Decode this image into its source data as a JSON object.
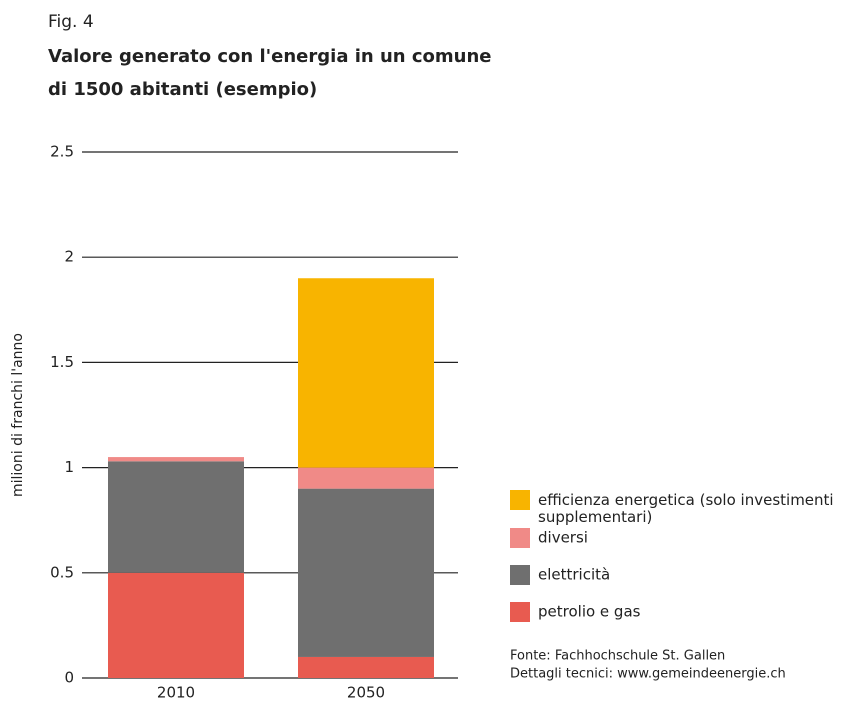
{
  "chart_data": {
    "type": "stacked_bar",
    "subtitle": "Fig. 4",
    "title": [
      "Valore generato con l'energia in un comune",
      "di 1500 abitanti (esempio)"
    ],
    "y_label": "milioni di franchi l'anno",
    "categories": [
      "2010",
      "2050"
    ],
    "series": [
      {
        "name": "petrolio e gas",
        "color": "#e85b50",
        "values": [
          0.5,
          0.1
        ]
      },
      {
        "name": "elettricità",
        "color": "#6f6f6f",
        "values": [
          0.53,
          0.8
        ]
      },
      {
        "name": "diversi",
        "color": "#f08a87",
        "values": [
          0.02,
          0.1
        ]
      },
      {
        "name": "efficienza energetica (solo investimenti supplementari)",
        "color": "#f8b400",
        "values": [
          0,
          0.9
        ]
      }
    ],
    "ylim": [
      0,
      2.5
    ],
    "yticks": [
      0,
      0.5,
      1,
      1.5,
      2,
      2.5
    ],
    "grid": true,
    "notes": [
      "Fonte: Fachhochschule St. Gallen",
      "Dettagli tecnici: www.gemeindeenergie.ch"
    ]
  }
}
